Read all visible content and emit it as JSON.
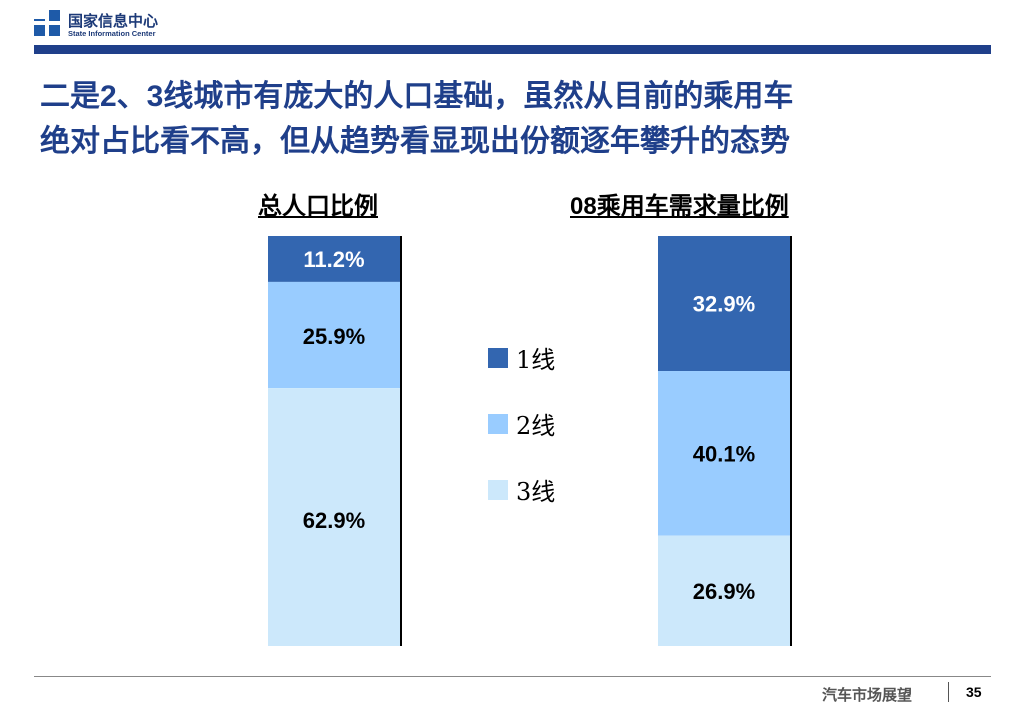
{
  "header": {
    "org_name_cn": "国家信息中心",
    "org_name_en": "State Information Center"
  },
  "headline": {
    "line1": "二是2、3线城市有庞大的人口基础，虽然从目前的乘用车",
    "line2": "绝对占比看不高，但从趋势看显现出份额逐年攀升的态势"
  },
  "colors": {
    "tier1": "#3366b0",
    "tier2": "#99ccff",
    "tier3": "#cce8fb",
    "brand": "#1f3f8a"
  },
  "chart_data": {
    "type": "bar",
    "stacked": true,
    "normalized": true,
    "categories": [
      "总人口比例",
      "08乘用车需求量比例"
    ],
    "series": [
      {
        "name": "1线",
        "values": [
          11.2,
          32.9
        ],
        "labels": [
          "11.2%",
          "32.9%"
        ]
      },
      {
        "name": "2线",
        "values": [
          25.9,
          40.1
        ],
        "labels": [
          "25.9%",
          "40.1%"
        ]
      },
      {
        "name": "3线",
        "values": [
          62.9,
          26.9
        ],
        "labels": [
          "62.9%",
          "26.9%"
        ]
      }
    ],
    "legend_position": "center",
    "unit": "%"
  },
  "legend": {
    "items": [
      {
        "label": "1线"
      },
      {
        "label": "2线"
      },
      {
        "label": "3线"
      }
    ]
  },
  "footer": {
    "section": "汽车市场展望",
    "page": "35"
  }
}
